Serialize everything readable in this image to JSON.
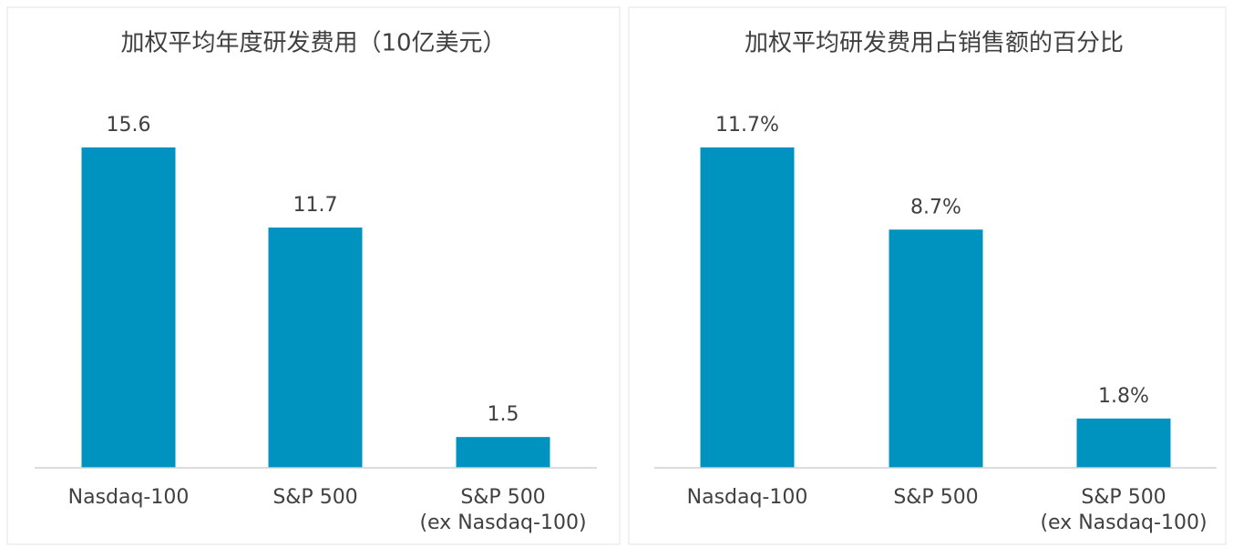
{
  "chart_data": [
    {
      "type": "bar",
      "title": "加权平均年度研发费用（10亿美元）",
      "categories": [
        "Nasdaq-100",
        "S&P 500",
        "S&P 500\n(ex Nasdaq-100)"
      ],
      "values": [
        15.6,
        11.7,
        1.5
      ],
      "color": "#0093c0"
    },
    {
      "type": "bar",
      "title": "加权平均研发费用占销售额的百分比",
      "categories": [
        "Nasdaq-100",
        "S&P 500",
        "S&P 500\n(ex Nasdaq-100)"
      ],
      "values": [
        11.7,
        8.7,
        1.8
      ],
      "value_labels": [
        "11.7%",
        "8.7%",
        "1.8%"
      ],
      "color": "#0093c0"
    }
  ]
}
